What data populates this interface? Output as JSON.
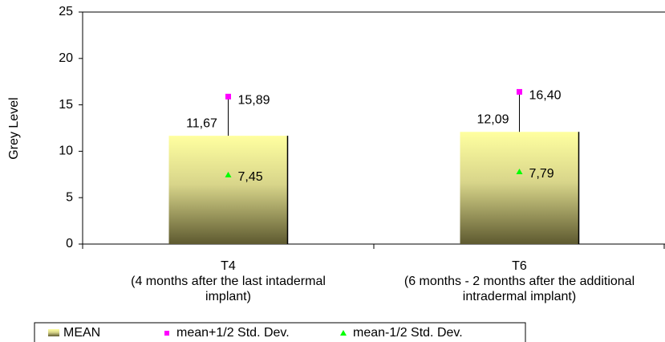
{
  "chart_data": {
    "type": "bar",
    "y_label": "Grey Level",
    "categories": [
      "T4\n(4 months after the last intadermal\nimplant)",
      "T6\n(6 months - 2 months after the additional\nintradermal implant)"
    ],
    "series": [
      {
        "name": "MEAN",
        "kind": "bar",
        "color": "#ffff99",
        "values": [
          11.67,
          12.09
        ],
        "value_labels": [
          "11,67",
          "12,09"
        ]
      },
      {
        "name": "mean+1/2 Std. Dev.",
        "kind": "square",
        "color": "#ff00ff",
        "values": [
          15.89,
          16.4
        ],
        "value_labels": [
          "15,89",
          "16,40"
        ]
      },
      {
        "name": "mean-1/2 Std. Dev.",
        "kind": "triangle",
        "color": "#00ff00",
        "values": [
          7.45,
          7.79
        ],
        "value_labels": [
          "7,45",
          "7,79"
        ]
      }
    ],
    "ylim": [
      0,
      25
    ],
    "yticks": [
      0,
      5,
      10,
      15,
      20,
      25
    ],
    "grid": false
  }
}
